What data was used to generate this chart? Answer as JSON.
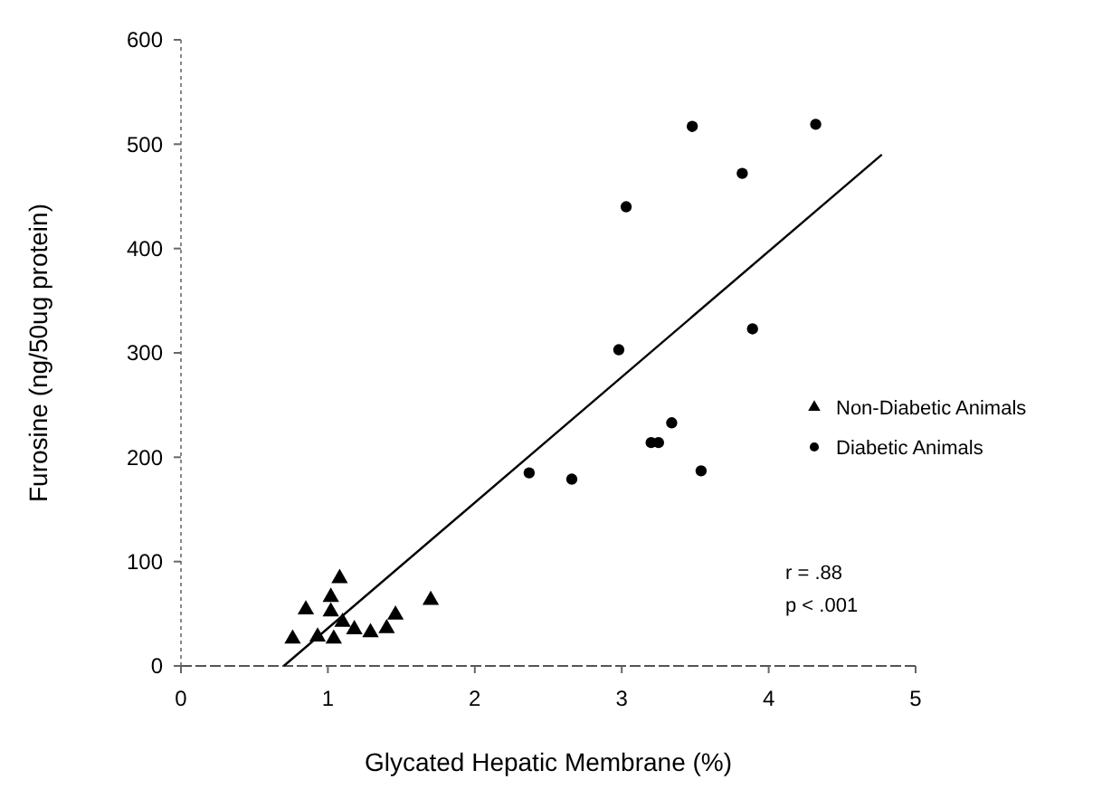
{
  "chart_data": {
    "type": "scatter",
    "xlabel": "Glycated Hepatic Membrane (%)",
    "ylabel": "Furosine (ng/50ug protein)",
    "xlim": [
      0,
      5
    ],
    "xticks": [
      0,
      1,
      2,
      3,
      4,
      5
    ],
    "ylim": [
      0,
      600
    ],
    "yticks": [
      0,
      100,
      200,
      300,
      400,
      500,
      600
    ],
    "grid": false,
    "legend": "right",
    "annotations": [
      "r = .88",
      "p < .001"
    ],
    "series": [
      {
        "name": "Non-Diabetic Animals",
        "color": "#000000",
        "marker": "triangle",
        "x": [
          0.76,
          0.85,
          0.93,
          1.02,
          1.02,
          1.04,
          1.08,
          1.1,
          1.18,
          1.29,
          1.4,
          1.46,
          1.7
        ],
        "values": [
          26,
          54,
          28,
          66,
          52,
          26,
          84,
          42,
          35,
          32,
          36,
          49,
          63
        ]
      },
      {
        "name": "Diabetic Animals",
        "color": "#000000",
        "marker": "circle",
        "x": [
          2.37,
          2.66,
          2.98,
          3.03,
          3.2,
          3.25,
          3.34,
          3.48,
          3.54,
          3.82,
          3.89,
          4.32
        ],
        "values": [
          185,
          179,
          303,
          440,
          214,
          214,
          233,
          517,
          187,
          472,
          323,
          519
        ]
      },
      {
        "type": "line",
        "color": "#000000",
        "x": [
          0.7,
          4.77
        ],
        "values": [
          0,
          490
        ]
      }
    ]
  }
}
